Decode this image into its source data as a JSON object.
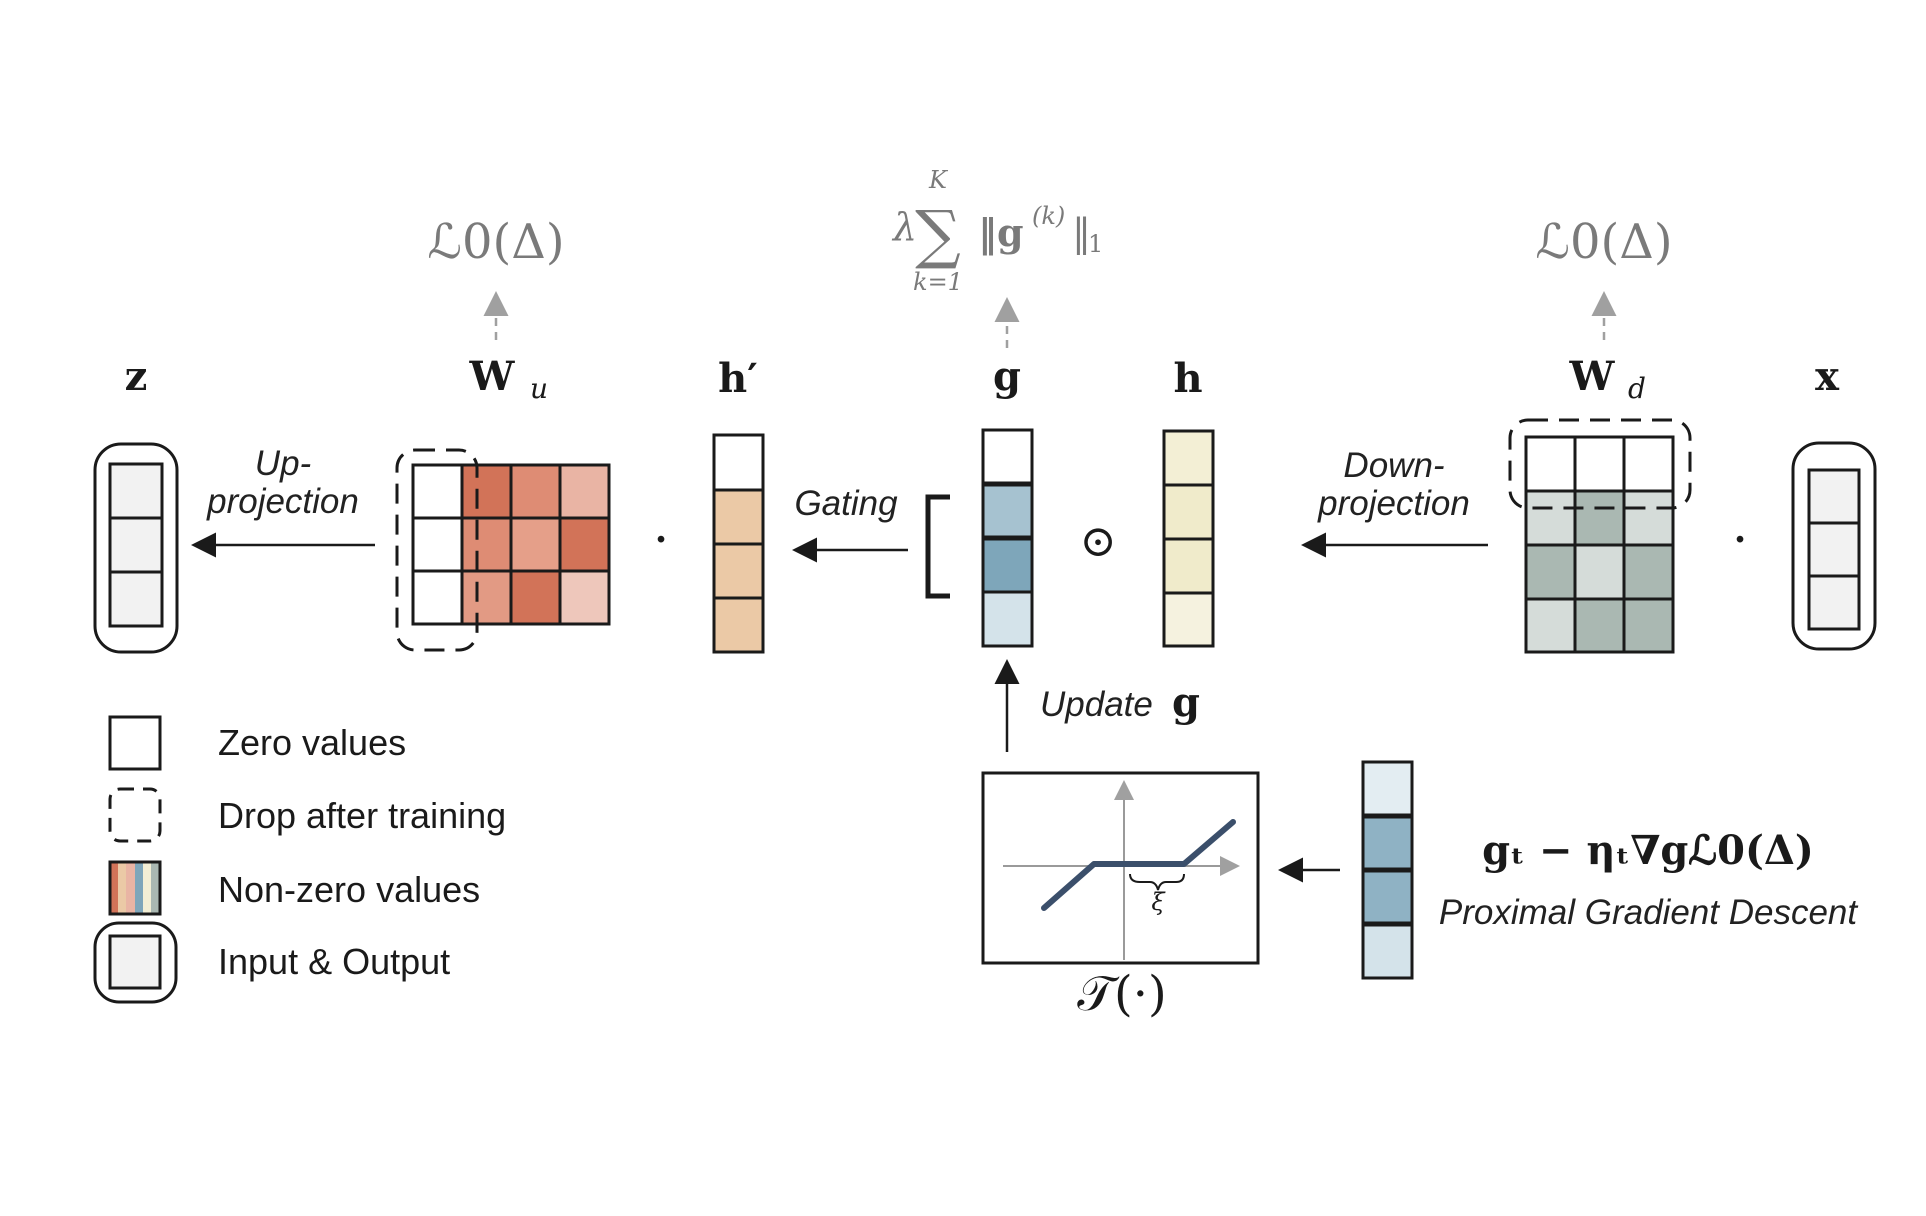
{
  "variables": {
    "z": "z",
    "w_u": "W",
    "w_u_sub": "u",
    "h_prime": "h′",
    "g": "g",
    "h": "h",
    "w_d": "W",
    "w_d_sub": "d",
    "x": "x"
  },
  "losses": {
    "left": "ℒ0(Δ)",
    "middle_lambda": "λ",
    "middle_sum": "∑",
    "middle_upper": "K",
    "middle_lower": "k=1",
    "middle_norm": "‖g",
    "middle_sup": "(k)",
    "middle_norm_end": "‖",
    "middle_sub": "1",
    "right": "ℒ0(Δ)"
  },
  "labels": {
    "up_projection_1": "Up-",
    "up_projection_2": "projection",
    "gating": "Gating",
    "down_projection_1": "Down-",
    "down_projection_2": "projection",
    "update": "Update",
    "update_var": "g",
    "odot": "⊙",
    "dot": "·",
    "threshold_fn": "𝒯(·)",
    "xi": "ξ",
    "pgd_formula": "gₜ − ηₜ∇gℒ0(Δ)",
    "pgd_caption": "Proximal Gradient Descent"
  },
  "legend": [
    {
      "label": "Zero values"
    },
    {
      "label": "Drop after training"
    },
    {
      "label": "Non-zero values"
    },
    {
      "label": "Input & Output"
    }
  ],
  "colors": {
    "red_dark": "#d27358",
    "red_mid": "#de8c74",
    "red_light": "#e9b4a4",
    "red_pale": "#eec7bb",
    "peach": "#ebc9a6",
    "blue_dark": "#7ea6ba",
    "blue_mid": "#a6c2d0",
    "blue_pale": "#d4e3ea",
    "blue_faint": "#e3edf2",
    "cream": "#f3efd5",
    "cream_mid": "#f0ebcb",
    "cream_light": "#f5f2df",
    "gray_dark": "#aab8b2",
    "gray_light": "#d5dcd9",
    "io_fill": "#f2f2f2",
    "curve": "#3b4f6b"
  }
}
